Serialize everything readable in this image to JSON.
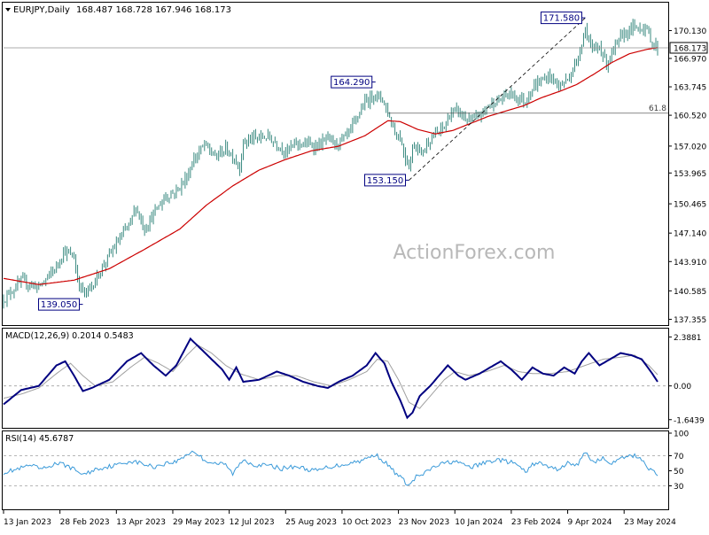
{
  "header": {
    "symbol": "EURJPY,Daily",
    "ohlc": "168.487 168.728 167.946 168.173"
  },
  "watermark": "ActionForex.com",
  "colors": {
    "price": "#3a8a80",
    "ma": "#cc0000",
    "macd": "#000080",
    "signal": "#a0a0a0",
    "rsi": "#3a9ad9",
    "label_border": "#000080",
    "grid_dashed": "#a0a0a0"
  },
  "chart_data": [
    {
      "type": "candlestick",
      "panel": "price",
      "title": "EURJPY,Daily",
      "y_ticks": [
        "170.130",
        "166.970",
        "163.745",
        "160.520",
        "157.020",
        "153.965",
        "150.465",
        "147.140",
        "143.910",
        "140.585",
        "137.355"
      ],
      "y_tick_values": [
        170.13,
        166.97,
        163.745,
        160.52,
        157.02,
        153.965,
        150.465,
        147.14,
        143.91,
        140.585,
        137.355
      ],
      "ylim": [
        136.8,
        173.2
      ],
      "x_ticks": [
        "13 Jan 2023",
        "28 Feb 2023",
        "13 Apr 2023",
        "29 May 2023",
        "12 Jul 2023",
        "25 Aug 2023",
        "10 Oct 2023",
        "23 Nov 2023",
        "10 Jan 2024",
        "23 Feb 2024",
        "9 Apr 2024",
        "23 May 2024"
      ],
      "x_tick_index": [
        0,
        32,
        64,
        96,
        128,
        160,
        192,
        224,
        256,
        288,
        320,
        352
      ],
      "bar_count": 372,
      "close_key_points": [
        [
          0,
          139.6
        ],
        [
          10,
          141.7
        ],
        [
          20,
          141.0
        ],
        [
          30,
          143.3
        ],
        [
          34,
          145.1
        ],
        [
          40,
          144.4
        ],
        [
          42,
          141.8
        ],
        [
          46,
          140.2
        ],
        [
          51,
          141.4
        ],
        [
          55,
          142.9
        ],
        [
          58,
          144.0
        ],
        [
          65,
          146.2
        ],
        [
          72,
          148.4
        ],
        [
          75,
          150.1
        ],
        [
          80,
          147.6
        ],
        [
          86,
          149.6
        ],
        [
          92,
          151.3
        ],
        [
          98,
          151.9
        ],
        [
          104,
          153.5
        ],
        [
          108,
          155.5
        ],
        [
          114,
          157.2
        ],
        [
          120,
          155.8
        ],
        [
          126,
          156.7
        ],
        [
          130,
          155.9
        ],
        [
          134,
          154.6
        ],
        [
          136,
          157.4
        ],
        [
          140,
          157.8
        ],
        [
          150,
          158.1
        ],
        [
          160,
          156.4
        ],
        [
          166,
          157.3
        ],
        [
          170,
          157.3
        ],
        [
          178,
          157.0
        ],
        [
          184,
          157.9
        ],
        [
          188,
          157.2
        ],
        [
          194,
          158.0
        ],
        [
          198,
          159.2
        ],
        [
          204,
          161.7
        ],
        [
          210,
          162.9
        ],
        [
          215,
          162.4
        ],
        [
          218,
          160.8
        ],
        [
          222,
          158.6
        ],
        [
          225,
          157.9
        ],
        [
          228,
          155.7
        ],
        [
          230,
          154.8
        ],
        [
          233,
          157.4
        ],
        [
          237,
          156.2
        ],
        [
          241,
          157.6
        ],
        [
          245,
          158.3
        ],
        [
          250,
          159.2
        ],
        [
          254,
          160.9
        ],
        [
          258,
          161.0
        ],
        [
          262,
          160.1
        ],
        [
          266,
          159.9
        ],
        [
          270,
          160.5
        ],
        [
          276,
          161.8
        ],
        [
          282,
          162.3
        ],
        [
          286,
          163.0
        ],
        [
          292,
          162.5
        ],
        [
          296,
          162.1
        ],
        [
          300,
          163.6
        ],
        [
          304,
          164.3
        ],
        [
          310,
          165.0
        ],
        [
          315,
          163.8
        ],
        [
          320,
          164.6
        ],
        [
          325,
          166.5
        ],
        [
          330,
          170.4
        ],
        [
          334,
          167.7
        ],
        [
          338,
          168.4
        ],
        [
          342,
          166.4
        ],
        [
          346,
          167.9
        ],
        [
          350,
          169.3
        ],
        [
          356,
          170.4
        ],
        [
          362,
          170.5
        ],
        [
          365,
          170.2
        ],
        [
          368,
          168.7
        ],
        [
          371,
          168.173
        ]
      ],
      "ma_key_points": [
        [
          0,
          142.0
        ],
        [
          20,
          141.3
        ],
        [
          40,
          141.8
        ],
        [
          60,
          143.1
        ],
        [
          80,
          145.3
        ],
        [
          100,
          147.6
        ],
        [
          115,
          150.3
        ],
        [
          130,
          152.5
        ],
        [
          145,
          154.3
        ],
        [
          160,
          155.5
        ],
        [
          175,
          156.5
        ],
        [
          190,
          157.0
        ],
        [
          205,
          158.2
        ],
        [
          218,
          159.9
        ],
        [
          225,
          159.8
        ],
        [
          235,
          158.9
        ],
        [
          245,
          158.4
        ],
        [
          255,
          158.8
        ],
        [
          265,
          159.6
        ],
        [
          275,
          160.4
        ],
        [
          285,
          161.0
        ],
        [
          295,
          161.6
        ],
        [
          305,
          162.5
        ],
        [
          315,
          163.2
        ],
        [
          325,
          164.0
        ],
        [
          335,
          165.2
        ],
        [
          345,
          166.5
        ],
        [
          355,
          167.5
        ],
        [
          365,
          168.0
        ],
        [
          371,
          168.2
        ]
      ],
      "annotations": [
        {
          "text": "171.580",
          "index": 330,
          "value": 171.58,
          "position": "left"
        },
        {
          "text": "164.290",
          "index": 211,
          "value": 164.29,
          "position": "left"
        },
        {
          "text": "153.150",
          "index": 230,
          "value": 153.15,
          "position": "left"
        },
        {
          "text": "139.050",
          "index": 45,
          "value": 139.05,
          "position": "left"
        }
      ],
      "last_price": "168.173",
      "fib_level": {
        "label": "61.8",
        "value": 160.75
      },
      "trendline": [
        [
          230,
          153.15
        ],
        [
          330,
          171.58
        ]
      ]
    },
    {
      "type": "line",
      "panel": "macd",
      "title": "MACD(12,26,9) 0.2014 0.5483",
      "y_ticks": [
        "2.3881",
        "0.00",
        "-1.6439"
      ],
      "y_tick_values": [
        2.3881,
        0.0,
        -1.6439
      ],
      "ylim": [
        -2.0,
        2.75
      ],
      "series": [
        {
          "role": "macd",
          "key_points": [
            [
              0,
              -0.9
            ],
            [
              10,
              -0.2
            ],
            [
              20,
              0.0
            ],
            [
              30,
              1.0
            ],
            [
              35,
              1.2
            ],
            [
              40,
              0.5
            ],
            [
              45,
              -0.25
            ],
            [
              50,
              -0.1
            ],
            [
              60,
              0.3
            ],
            [
              70,
              1.2
            ],
            [
              78,
              1.6
            ],
            [
              85,
              1.0
            ],
            [
              92,
              0.5
            ],
            [
              98,
              1.0
            ],
            [
              106,
              2.3
            ],
            [
              112,
              1.8
            ],
            [
              118,
              1.3
            ],
            [
              124,
              0.8
            ],
            [
              128,
              0.3
            ],
            [
              132,
              0.9
            ],
            [
              136,
              0.2
            ],
            [
              145,
              0.3
            ],
            [
              155,
              0.7
            ],
            [
              162,
              0.5
            ],
            [
              170,
              0.2
            ],
            [
              178,
              0.0
            ],
            [
              184,
              -0.1
            ],
            [
              190,
              0.2
            ],
            [
              198,
              0.5
            ],
            [
              206,
              1.0
            ],
            [
              211,
              1.6
            ],
            [
              216,
              1.1
            ],
            [
              220,
              0.2
            ],
            [
              225,
              -0.7
            ],
            [
              229,
              -1.55
            ],
            [
              232,
              -1.3
            ],
            [
              236,
              -0.5
            ],
            [
              242,
              0.0
            ],
            [
              248,
              0.6
            ],
            [
              252,
              1.0
            ],
            [
              258,
              0.5
            ],
            [
              262,
              0.3
            ],
            [
              270,
              0.6
            ],
            [
              278,
              1.0
            ],
            [
              282,
              1.2
            ],
            [
              288,
              0.8
            ],
            [
              294,
              0.3
            ],
            [
              300,
              0.9
            ],
            [
              306,
              0.6
            ],
            [
              312,
              0.5
            ],
            [
              318,
              0.9
            ],
            [
              324,
              0.6
            ],
            [
              328,
              1.2
            ],
            [
              332,
              1.6
            ],
            [
              338,
              1.0
            ],
            [
              344,
              1.3
            ],
            [
              350,
              1.6
            ],
            [
              356,
              1.5
            ],
            [
              362,
              1.3
            ],
            [
              368,
              0.6
            ],
            [
              371,
              0.2014
            ]
          ]
        },
        {
          "role": "signal",
          "key_points": [
            [
              0,
              -0.6
            ],
            [
              10,
              -0.4
            ],
            [
              20,
              -0.1
            ],
            [
              30,
              0.6
            ],
            [
              38,
              1.1
            ],
            [
              45,
              0.5
            ],
            [
              52,
              0.0
            ],
            [
              62,
              0.2
            ],
            [
              72,
              0.9
            ],
            [
              80,
              1.4
            ],
            [
              88,
              1.1
            ],
            [
              96,
              0.7
            ],
            [
              104,
              1.5
            ],
            [
              110,
              2.0
            ],
            [
              118,
              1.6
            ],
            [
              126,
              1.0
            ],
            [
              134,
              0.6
            ],
            [
              145,
              0.3
            ],
            [
              156,
              0.5
            ],
            [
              166,
              0.5
            ],
            [
              176,
              0.2
            ],
            [
              186,
              0.0
            ],
            [
              196,
              0.3
            ],
            [
              206,
              0.7
            ],
            [
              212,
              1.3
            ],
            [
              218,
              1.2
            ],
            [
              224,
              0.3
            ],
            [
              230,
              -0.8
            ],
            [
              236,
              -1.1
            ],
            [
              242,
              -0.5
            ],
            [
              250,
              0.3
            ],
            [
              256,
              0.7
            ],
            [
              264,
              0.5
            ],
            [
              274,
              0.7
            ],
            [
              284,
              1.0
            ],
            [
              292,
              0.7
            ],
            [
              300,
              0.6
            ],
            [
              310,
              0.6
            ],
            [
              320,
              0.7
            ],
            [
              330,
              1.0
            ],
            [
              340,
              1.3
            ],
            [
              350,
              1.4
            ],
            [
              358,
              1.5
            ],
            [
              366,
              1.0
            ],
            [
              371,
              0.5483
            ]
          ]
        }
      ]
    },
    {
      "type": "line",
      "panel": "rsi",
      "title": "RSI(14) 45.6787",
      "y_ticks": [
        "100",
        "70",
        "50",
        "30"
      ],
      "y_tick_values": [
        100,
        70,
        50,
        30
      ],
      "ylim": [
        0,
        100
      ],
      "series": [
        {
          "role": "rsi",
          "key_points": [
            [
              0,
              48
            ],
            [
              8,
              52
            ],
            [
              15,
              57
            ],
            [
              22,
              52
            ],
            [
              30,
              60
            ],
            [
              36,
              57
            ],
            [
              42,
              49
            ],
            [
              46,
              45
            ],
            [
              52,
              52
            ],
            [
              58,
              55
            ],
            [
              65,
              58
            ],
            [
              72,
              63
            ],
            [
              78,
              60
            ],
            [
              85,
              55
            ],
            [
              92,
              60
            ],
            [
              98,
              62
            ],
            [
              104,
              72
            ],
            [
              108,
              76
            ],
            [
              114,
              64
            ],
            [
              120,
              60
            ],
            [
              126,
              58
            ],
            [
              130,
              46
            ],
            [
              136,
              65
            ],
            [
              142,
              58
            ],
            [
              150,
              57
            ],
            [
              158,
              53
            ],
            [
              166,
              56
            ],
            [
              172,
              52
            ],
            [
              178,
              50
            ],
            [
              184,
              55
            ],
            [
              192,
              58
            ],
            [
              200,
              62
            ],
            [
              206,
              66
            ],
            [
              211,
              72
            ],
            [
              216,
              62
            ],
            [
              222,
              48
            ],
            [
              227,
              37
            ],
            [
              230,
              30
            ],
            [
              234,
              42
            ],
            [
              238,
              45
            ],
            [
              244,
              55
            ],
            [
              250,
              60
            ],
            [
              256,
              63
            ],
            [
              260,
              58
            ],
            [
              266,
              55
            ],
            [
              272,
              60
            ],
            [
              280,
              65
            ],
            [
              286,
              62
            ],
            [
              290,
              60
            ],
            [
              296,
              48
            ],
            [
              302,
              62
            ],
            [
              308,
              56
            ],
            [
              314,
              52
            ],
            [
              320,
              60
            ],
            [
              326,
              58
            ],
            [
              330,
              76
            ],
            [
              334,
              62
            ],
            [
              340,
              66
            ],
            [
              346,
              60
            ],
            [
              352,
              68
            ],
            [
              358,
              70
            ],
            [
              362,
              66
            ],
            [
              366,
              53
            ],
            [
              371,
              45.6787
            ]
          ]
        }
      ]
    }
  ]
}
